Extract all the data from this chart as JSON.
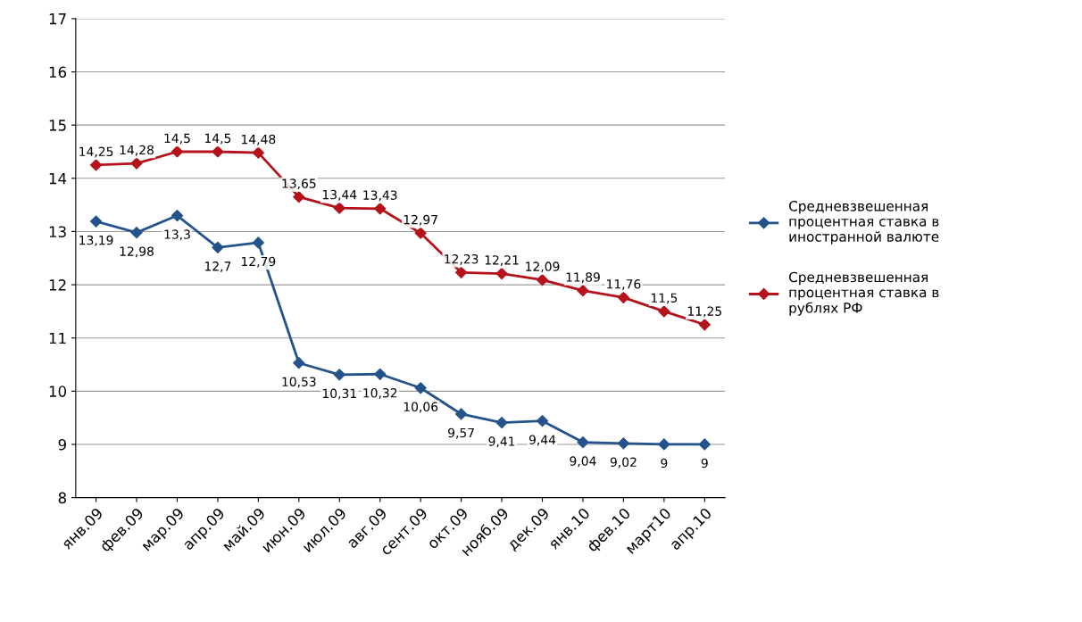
{
  "chart_data": {
    "type": "line",
    "categories": [
      "янв.09",
      "фев.09",
      "мар.09",
      "апр.09",
      "май.09",
      "июн.09",
      "июл.09",
      "авг.09",
      "сент.09",
      "окт.09",
      "нояб.09",
      "дек.09",
      "янв.10",
      "фев.10",
      "март10",
      "апр.10"
    ],
    "series": [
      {
        "name": "Средневзвешенная процентная ставка в иностранной валюте",
        "color": "#23538a",
        "values": [
          13.19,
          12.98,
          13.3,
          12.7,
          12.79,
          10.53,
          10.31,
          10.32,
          10.06,
          9.57,
          9.41,
          9.44,
          9.04,
          9.02,
          9,
          9
        ],
        "value_labels": [
          "13,19",
          "12,98",
          "13,3",
          "12,7",
          "12,79",
          "10,53",
          "10,31",
          "10,32",
          "10,06",
          "9,57",
          "9,41",
          "9,44",
          "9,04",
          "9,02",
          "9",
          "9"
        ]
      },
      {
        "name": "Средневзвешенная процентная ставка в рублях РФ",
        "color": "#b5121b",
        "values": [
          14.25,
          14.28,
          14.5,
          14.5,
          14.48,
          13.65,
          13.44,
          13.43,
          12.97,
          12.23,
          12.21,
          12.09,
          11.89,
          11.76,
          11.5,
          11.25
        ],
        "value_labels": [
          "14,25",
          "14,28",
          "14,5",
          "14,5",
          "14,48",
          "13,65",
          "13,44",
          "13,43",
          "12,97",
          "12,23",
          "12,21",
          "12,09",
          "11,89",
          "11,76",
          "11,5",
          "11,25"
        ]
      }
    ],
    "ylim": [
      8,
      17
    ],
    "yticks": [
      8,
      9,
      10,
      11,
      12,
      13,
      14,
      15,
      16,
      17
    ],
    "grid": "y",
    "legend": "right",
    "marker": "diamond",
    "line_style": "solid"
  }
}
